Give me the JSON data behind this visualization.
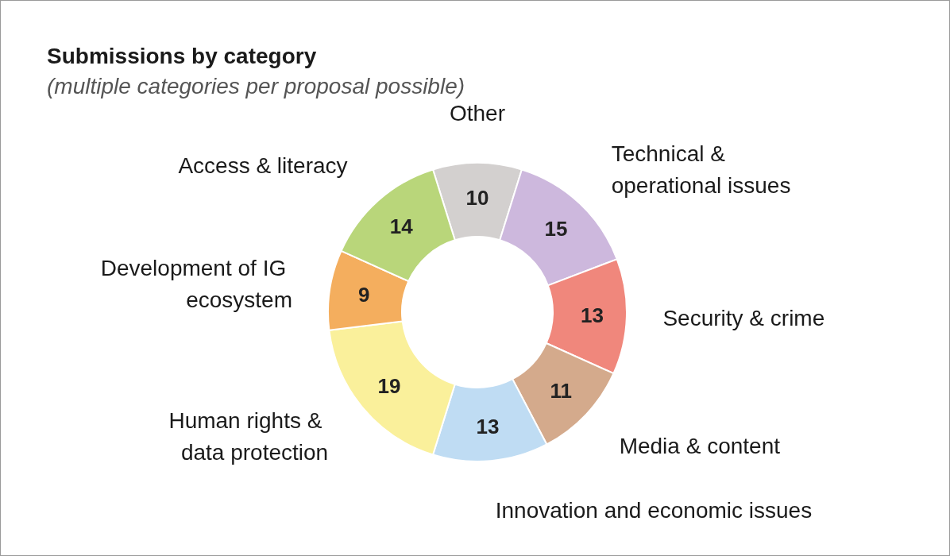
{
  "chart_data": {
    "type": "donut",
    "title": "Submissions by category",
    "subtitle": "(multiple categories per proposal possible)",
    "categories": [
      "Other",
      "Technical & operational issues",
      "Security & crime",
      "Media & content",
      "Innovation and economic issues",
      "Human rights & data protection",
      "Development of IG ecosystem",
      "Access & literacy"
    ],
    "values": [
      10,
      15,
      13,
      11,
      13,
      19,
      9,
      14
    ],
    "colors": [
      "#d3d0cf",
      "#cdb8dd",
      "#f0877c",
      "#d4aa8c",
      "#bfdcf3",
      "#faf09b",
      "#f4ae5e",
      "#b9d67a"
    ],
    "data_labels": true,
    "legend": false
  }
}
